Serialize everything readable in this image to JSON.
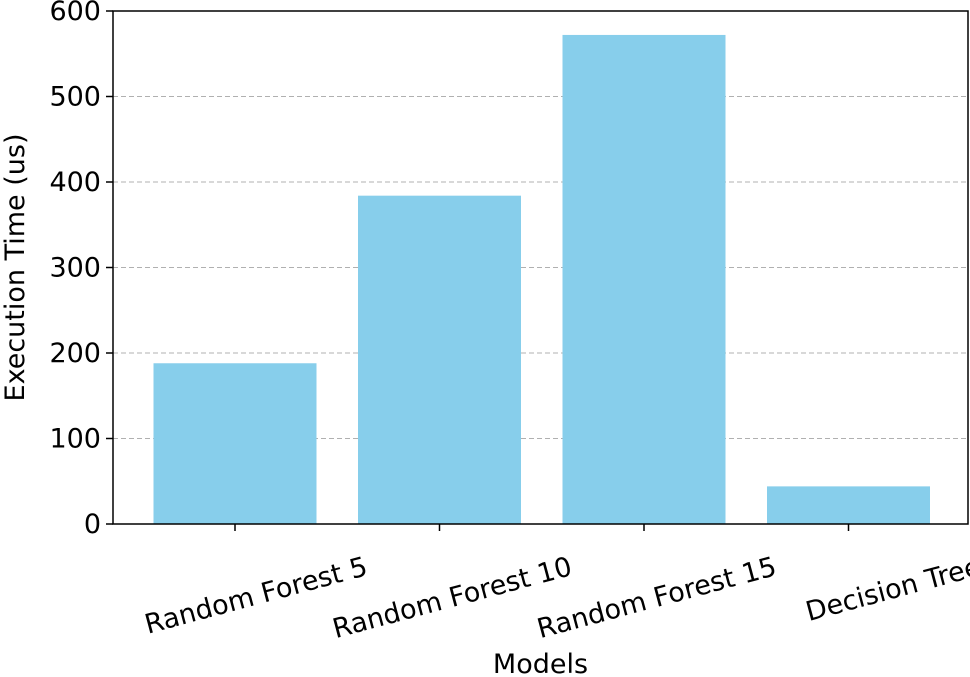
{
  "chart_data": {
    "type": "bar",
    "title": "",
    "xlabel": "Models",
    "ylabel": "Execution Time (us)",
    "categories": [
      "Random Forest 5",
      "Random Forest 10",
      "Random Forest 15",
      "Decision Tree"
    ],
    "values": [
      188,
      384,
      572,
      44
    ],
    "ylim": [
      0,
      600
    ],
    "yticks": [
      "0",
      "100",
      "200",
      "300",
      "400",
      "500",
      "600"
    ],
    "grid": "y-dashed",
    "legend": "none",
    "bar_color": "#87CEEB",
    "grid_color": "#b0b0b0",
    "axis_color": "#000000",
    "xtick_rotation_deg": -15
  }
}
